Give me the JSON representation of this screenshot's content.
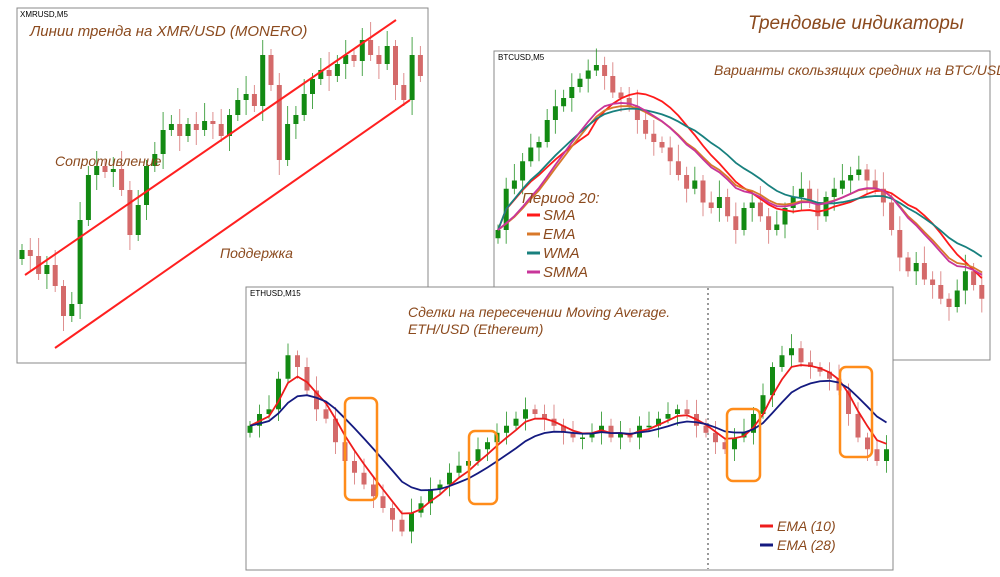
{
  "header": "Трендовые индикаторы",
  "colors": {
    "bull": "#138a13",
    "bear": "#d46a6a",
    "text": "#8b4a1e",
    "sma": "#ff1a1a",
    "ema": "#d8782a",
    "wma": "#18807e",
    "smma": "#c8359a",
    "ema10": "#ee1c1c",
    "ema28": "#141a80",
    "box": "#ff8c1a"
  },
  "chart_data": [
    {
      "type": "candlestick",
      "symbol": "XMRUSD,M5",
      "title": "Линии тренда на XMR/USD (MONERO)",
      "annotations": [
        "Сопротивление",
        "Поддержка"
      ],
      "closes": [
        30,
        28,
        22,
        25,
        18,
        8,
        12,
        40,
        55,
        58,
        56,
        57,
        50,
        35,
        45,
        58,
        62,
        70,
        72,
        68,
        72,
        70,
        73,
        72,
        68,
        75,
        80,
        82,
        78,
        95,
        85,
        60,
        72,
        75,
        82,
        87,
        90,
        88,
        92,
        95,
        93,
        100,
        95,
        92,
        98,
        85,
        80,
        95,
        88
      ]
    },
    {
      "type": "candlestick",
      "symbol": "BTCUSD,M5",
      "title": "Варианты скользящих средних на BTC/USD (Bitcoin)",
      "legend_title": "Период 20:",
      "legend_position": "bottom-left",
      "series": [
        {
          "name": "SMA",
          "color": "#ff1a1a"
        },
        {
          "name": "EMA",
          "color": "#d8782a"
        },
        {
          "name": "WMA",
          "color": "#18807e"
        },
        {
          "name": "SMMA",
          "color": "#c8359a"
        }
      ],
      "closes": [
        40,
        55,
        58,
        65,
        70,
        72,
        80,
        85,
        88,
        92,
        95,
        98,
        100,
        96,
        90,
        88,
        85,
        80,
        75,
        72,
        70,
        65,
        60,
        55,
        58,
        50,
        48,
        52,
        45,
        40,
        48,
        50,
        45,
        40,
        42,
        48,
        52,
        55,
        50,
        45,
        52,
        55,
        58,
        60,
        62,
        58,
        55,
        50,
        40,
        30,
        25,
        28,
        22,
        20,
        15,
        12,
        18,
        25,
        20,
        15
      ]
    },
    {
      "type": "candlestick",
      "symbol": "ETHUSD,M15",
      "title": "Сделки на пересечении Moving Average.",
      "subtitle": "ETH/USD (Ethereum)",
      "legend_position": "bottom-right",
      "series": [
        {
          "name": "EMA (10)",
          "color": "#ee1c1c"
        },
        {
          "name": "EMA (28)",
          "color": "#141a80"
        }
      ],
      "closes": [
        55,
        60,
        62,
        75,
        85,
        80,
        70,
        62,
        58,
        48,
        40,
        35,
        30,
        25,
        20,
        15,
        10,
        18,
        22,
        28,
        30,
        35,
        38,
        40,
        45,
        48,
        52,
        55,
        58,
        62,
        60,
        58,
        55,
        52,
        50,
        50,
        52,
        55,
        50,
        52,
        50,
        55,
        55,
        58,
        60,
        62,
        60,
        55,
        52,
        48,
        45,
        50,
        52,
        60,
        68,
        80,
        85,
        88,
        82,
        80,
        78,
        75,
        70,
        60,
        50,
        45,
        40,
        45
      ]
    }
  ]
}
